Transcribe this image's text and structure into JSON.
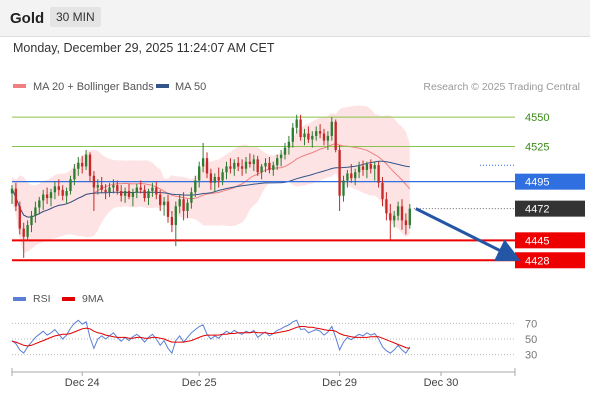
{
  "header": {
    "title": "Gold",
    "interval": "30 MIN",
    "timestamp": "Monday, December 29, 2025 11:24:07 AM CET"
  },
  "legend": {
    "ma20": {
      "label": "MA 20 + Bollinger Bands",
      "color": "#f08080"
    },
    "ma50": {
      "label": "MA 50",
      "color": "#33558a"
    },
    "rsi": {
      "label": "RSI",
      "color": "#5a7fd6"
    },
    "ma9": {
      "label": "9MA",
      "color": "#e00000"
    }
  },
  "copyright": "Research © 2025 Trading Central",
  "colors": {
    "up": "#2e7d32",
    "down": "#c62828",
    "band": "#fde3e3",
    "pivot_blue": "#2f6fe0",
    "support_red": "#ee0000",
    "resistance_green": "#8bc34a",
    "last": "#333333"
  },
  "chart_data": {
    "type": "candlestick",
    "price_ylim": [
      4418,
      4568
    ],
    "rsi_ylim": [
      18,
      82
    ],
    "x_range": [
      0,
      120
    ],
    "dates": [
      {
        "label": "Dec 24",
        "x": 18
      },
      {
        "label": "Dec 25",
        "x": 48
      },
      {
        "label": "Dec 29",
        "x": 84
      },
      {
        "label": "Dec 30",
        "x": 110
      }
    ],
    "levels": [
      {
        "value": 4550,
        "label": "4550",
        "kind": "resistance"
      },
      {
        "value": 4525,
        "label": "4525",
        "kind": "resistance"
      },
      {
        "value": 4495,
        "label": "4495",
        "kind": "pivot"
      },
      {
        "value": 4472,
        "label": "4472",
        "kind": "last"
      },
      {
        "value": 4445,
        "label": "4445",
        "kind": "support"
      },
      {
        "value": 4428,
        "label": "4428",
        "kind": "support"
      }
    ],
    "rsi_ticks": [
      70,
      50,
      30
    ],
    "candles": [
      [
        4485,
        4492,
        4476,
        4489
      ],
      [
        4489,
        4494,
        4470,
        4474
      ],
      [
        4474,
        4478,
        4450,
        4455
      ],
      [
        4455,
        4460,
        4430,
        4448
      ],
      [
        4448,
        4462,
        4444,
        4458
      ],
      [
        4458,
        4470,
        4452,
        4466
      ],
      [
        4466,
        4478,
        4460,
        4473
      ],
      [
        4473,
        4482,
        4467,
        4479
      ],
      [
        4479,
        4488,
        4471,
        4484
      ],
      [
        4484,
        4490,
        4476,
        4481
      ],
      [
        4481,
        4489,
        4474,
        4486
      ],
      [
        4486,
        4495,
        4480,
        4491
      ],
      [
        4491,
        4497,
        4483,
        4488
      ],
      [
        4488,
        4492,
        4479,
        4483
      ],
      [
        4483,
        4490,
        4476,
        4487
      ],
      [
        4487,
        4500,
        4484,
        4497
      ],
      [
        4497,
        4510,
        4492,
        4506
      ],
      [
        4506,
        4516,
        4500,
        4511
      ],
      [
        4511,
        4517,
        4502,
        4508
      ],
      [
        4508,
        4522,
        4505,
        4518
      ],
      [
        4518,
        4520,
        4495,
        4500
      ],
      [
        4500,
        4504,
        4470,
        4490
      ],
      [
        4490,
        4497,
        4484,
        4492
      ],
      [
        4492,
        4499,
        4485,
        4488
      ],
      [
        4488,
        4493,
        4480,
        4486
      ],
      [
        4486,
        4494,
        4482,
        4490
      ],
      [
        4490,
        4497,
        4485,
        4492
      ],
      [
        4492,
        4496,
        4484,
        4487
      ],
      [
        4487,
        4492,
        4478,
        4483
      ],
      [
        4483,
        4490,
        4477,
        4487
      ],
      [
        4487,
        4493,
        4480,
        4482
      ],
      [
        4482,
        4489,
        4474,
        4486
      ],
      [
        4486,
        4493,
        4481,
        4490
      ],
      [
        4490,
        4496,
        4485,
        4488
      ],
      [
        4488,
        4492,
        4478,
        4481
      ],
      [
        4481,
        4489,
        4475,
        4487
      ],
      [
        4487,
        4494,
        4482,
        4490
      ],
      [
        4490,
        4495,
        4480,
        4484
      ],
      [
        4484,
        4488,
        4470,
        4475
      ],
      [
        4475,
        4482,
        4466,
        4478
      ],
      [
        4478,
        4484,
        4460,
        4465
      ],
      [
        4465,
        4470,
        4452,
        4458
      ],
      [
        4458,
        4478,
        4440,
        4474
      ],
      [
        4474,
        4484,
        4468,
        4480
      ],
      [
        4480,
        4486,
        4462,
        4470
      ],
      [
        4470,
        4480,
        4464,
        4477
      ],
      [
        4477,
        4490,
        4472,
        4486
      ],
      [
        4486,
        4500,
        4482,
        4496
      ],
      [
        4496,
        4512,
        4490,
        4508
      ],
      [
        4508,
        4528,
        4503,
        4515
      ],
      [
        4515,
        4520,
        4498,
        4502
      ],
      [
        4502,
        4506,
        4488,
        4494
      ],
      [
        4494,
        4502,
        4486,
        4499
      ],
      [
        4499,
        4507,
        4490,
        4496
      ],
      [
        4496,
        4506,
        4492,
        4503
      ],
      [
        4503,
        4512,
        4497,
        4508
      ],
      [
        4508,
        4515,
        4502,
        4506
      ],
      [
        4506,
        4514,
        4500,
        4511
      ],
      [
        4511,
        4516,
        4504,
        4508
      ],
      [
        4508,
        4514,
        4500,
        4506
      ],
      [
        4506,
        4516,
        4502,
        4512
      ],
      [
        4512,
        4519,
        4507,
        4510
      ],
      [
        4510,
        4518,
        4504,
        4514
      ],
      [
        4514,
        4517,
        4500,
        4503
      ],
      [
        4503,
        4510,
        4497,
        4508
      ],
      [
        4508,
        4515,
        4503,
        4511
      ],
      [
        4511,
        4516,
        4502,
        4505
      ],
      [
        4505,
        4512,
        4500,
        4509
      ],
      [
        4509,
        4518,
        4505,
        4515
      ],
      [
        4515,
        4522,
        4508,
        4518
      ],
      [
        4518,
        4528,
        4514,
        4524
      ],
      [
        4524,
        4534,
        4518,
        4529
      ],
      [
        4529,
        4545,
        4524,
        4541
      ],
      [
        4541,
        4552,
        4536,
        4548
      ],
      [
        4548,
        4552,
        4530,
        4533
      ],
      [
        4533,
        4540,
        4526,
        4536
      ],
      [
        4536,
        4542,
        4528,
        4531
      ],
      [
        4531,
        4538,
        4524,
        4534
      ],
      [
        4534,
        4542,
        4530,
        4538
      ],
      [
        4538,
        4544,
        4532,
        4536
      ],
      [
        4536,
        4540,
        4526,
        4530
      ],
      [
        4530,
        4538,
        4522,
        4534
      ],
      [
        4534,
        4550,
        4530,
        4546
      ],
      [
        4546,
        4548,
        4520,
        4522
      ],
      [
        4522,
        4526,
        4470,
        4483
      ],
      [
        4483,
        4500,
        4478,
        4496
      ],
      [
        4496,
        4505,
        4490,
        4502
      ],
      [
        4502,
        4510,
        4494,
        4498
      ],
      [
        4498,
        4506,
        4492,
        4503
      ],
      [
        4503,
        4512,
        4498,
        4508
      ],
      [
        4508,
        4513,
        4500,
        4505
      ],
      [
        4505,
        4512,
        4498,
        4510
      ],
      [
        4510,
        4514,
        4502,
        4506
      ],
      [
        4506,
        4512,
        4496,
        4509
      ],
      [
        4509,
        4512,
        4490,
        4494
      ],
      [
        4494,
        4499,
        4474,
        4480
      ],
      [
        4480,
        4486,
        4462,
        4468
      ],
      [
        4468,
        4476,
        4445,
        4462
      ],
      [
        4462,
        4470,
        4456,
        4466
      ],
      [
        4466,
        4478,
        4462,
        4474
      ],
      [
        4474,
        4480,
        4454,
        4462
      ],
      [
        4462,
        4468,
        4450,
        4458
      ],
      [
        4458,
        4476,
        4455,
        4472
      ]
    ],
    "rsi": [
      48,
      44,
      36,
      32,
      40,
      46,
      52,
      56,
      60,
      55,
      58,
      62,
      56,
      50,
      55,
      64,
      70,
      74,
      69,
      72,
      52,
      38,
      50,
      54,
      50,
      54,
      58,
      52,
      47,
      52,
      48,
      53,
      56,
      52,
      46,
      52,
      56,
      50,
      42,
      48,
      38,
      32,
      48,
      54,
      46,
      52,
      58,
      62,
      66,
      68,
      56,
      50,
      54,
      51,
      56,
      60,
      57,
      61,
      58,
      56,
      60,
      58,
      61,
      52,
      56,
      59,
      54,
      57,
      61,
      63,
      66,
      68,
      72,
      74,
      62,
      63,
      58,
      60,
      62,
      60,
      55,
      59,
      66,
      52,
      36,
      46,
      52,
      49,
      53,
      56,
      54,
      58,
      55,
      57,
      50,
      40,
      35,
      32,
      36,
      42,
      36,
      32,
      40
    ],
    "rsi_ma9": [
      47,
      46,
      44,
      42,
      41,
      42,
      44,
      46,
      48,
      50,
      52,
      54,
      55,
      56,
      56,
      57,
      59,
      61,
      63,
      64,
      63,
      60,
      58,
      57,
      55,
      54,
      53,
      52,
      52,
      52,
      51,
      51,
      52,
      52,
      51,
      51,
      52,
      52,
      51,
      50,
      48,
      46,
      46,
      46,
      46,
      47,
      48,
      50,
      52,
      54,
      55,
      55,
      55,
      55,
      56,
      56,
      57,
      57,
      58,
      58,
      58,
      58,
      59,
      58,
      58,
      58,
      57,
      57,
      58,
      59,
      60,
      61,
      63,
      65,
      66,
      66,
      65,
      65,
      64,
      63,
      62,
      61,
      61,
      60,
      57,
      55,
      54,
      53,
      52,
      52,
      52,
      52,
      53,
      53,
      53,
      51,
      49,
      47,
      45,
      43,
      41,
      39,
      38
    ],
    "forecast": {
      "from_value": 4472,
      "to_value": 4432
    }
  }
}
